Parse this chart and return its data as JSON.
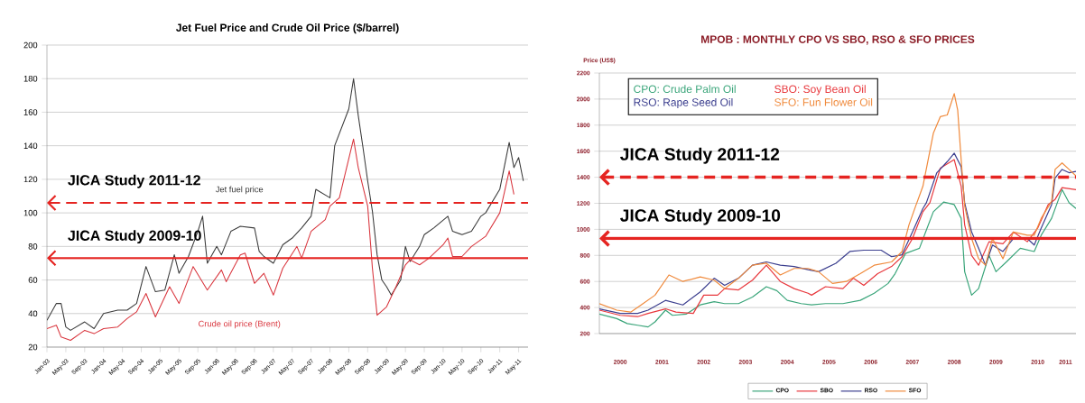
{
  "chart_data": [
    {
      "type": "line",
      "title": "Jet Fuel Price and Crude Oil Price ($/barrel)",
      "xlim": [
        "2003-01",
        "2011-07"
      ],
      "ylim": [
        20,
        200
      ],
      "yticks": [
        20,
        40,
        60,
        80,
        100,
        120,
        140,
        160,
        180,
        200
      ],
      "xticks": [
        {
          "value": "2003-01",
          "label": "Jan-03"
        },
        {
          "value": "2003-05",
          "label": "May-03"
        },
        {
          "value": "2003-09",
          "label": "Sep-03"
        },
        {
          "value": "2004-01",
          "label": "Jan-04"
        },
        {
          "value": "2004-05",
          "label": "May-04"
        },
        {
          "value": "2004-09",
          "label": "Sep-04"
        },
        {
          "value": "2005-01",
          "label": "Jan-05"
        },
        {
          "value": "2005-05",
          "label": "May-05"
        },
        {
          "value": "2005-09",
          "label": "Sep-05"
        },
        {
          "value": "2006-01",
          "label": "Jan-06"
        },
        {
          "value": "2006-05",
          "label": "May-06"
        },
        {
          "value": "2006-09",
          "label": "Sep-06"
        },
        {
          "value": "2007-01",
          "label": "Jan-07"
        },
        {
          "value": "2007-05",
          "label": "May-07"
        },
        {
          "value": "2007-09",
          "label": "Sep-07"
        },
        {
          "value": "2008-01",
          "label": "Jan-08"
        },
        {
          "value": "2008-05",
          "label": "May-08"
        },
        {
          "value": "2008-09",
          "label": "Sep-08"
        },
        {
          "value": "2009-01",
          "label": "Jan-09"
        },
        {
          "value": "2009-05",
          "label": "May-09"
        },
        {
          "value": "2009-09",
          "label": "Sep-09"
        },
        {
          "value": "2010-01",
          "label": "Jan-10"
        },
        {
          "value": "2010-05",
          "label": "May-10"
        },
        {
          "value": "2010-09",
          "label": "Sep-10"
        },
        {
          "value": "2011-01",
          "label": "Jan-11"
        },
        {
          "value": "2011-05",
          "label": "May-11"
        }
      ],
      "grid": "y",
      "series": [
        {
          "name": "Jet fuel price",
          "color": "#3a3a3a",
          "x": [
            "2003-01",
            "2003-03",
            "2003-04",
            "2003-05",
            "2003-06",
            "2003-09",
            "2003-11",
            "2004-01",
            "2004-04",
            "2004-06",
            "2004-08",
            "2004-10",
            "2004-12",
            "2005-02",
            "2005-04",
            "2005-05",
            "2005-07",
            "2005-09",
            "2005-10",
            "2005-11",
            "2006-01",
            "2006-02",
            "2006-04",
            "2006-06",
            "2006-09",
            "2006-10",
            "2006-11",
            "2007-01",
            "2007-03",
            "2007-05",
            "2007-07",
            "2007-09",
            "2007-10",
            "2008-01",
            "2008-02",
            "2008-05",
            "2008-06",
            "2008-07",
            "2008-08",
            "2008-09",
            "2008-10",
            "2008-11",
            "2008-12",
            "2009-01",
            "2009-02",
            "2009-04",
            "2009-05",
            "2009-06",
            "2009-08",
            "2009-09",
            "2009-11",
            "2010-02",
            "2010-03",
            "2010-05",
            "2010-07",
            "2010-09",
            "2010-10",
            "2011-01",
            "2011-03",
            "2011-04",
            "2011-05",
            "2011-06"
          ],
          "values": [
            36,
            46,
            46,
            32,
            30,
            35,
            31,
            40,
            42,
            42,
            46,
            68,
            53,
            54,
            75,
            64,
            74,
            89,
            98,
            70,
            80,
            75,
            89,
            92,
            91,
            77,
            74,
            70,
            81,
            85,
            91,
            98,
            114,
            109,
            140,
            162,
            180,
            158,
            139,
            119,
            101,
            75,
            60,
            56,
            51,
            60,
            80,
            71,
            80,
            87,
            91,
            98,
            89,
            87,
            89,
            98,
            100,
            114,
            142,
            127,
            133,
            119
          ]
        },
        {
          "name": "Crude oil price (Brent)",
          "color": "#d9363e",
          "x": [
            "2003-01",
            "2003-03",
            "2003-04",
            "2003-06",
            "2003-09",
            "2003-11",
            "2004-01",
            "2004-04",
            "2004-06",
            "2004-08",
            "2004-10",
            "2004-12",
            "2005-03",
            "2005-05",
            "2005-08",
            "2005-11",
            "2006-02",
            "2006-03",
            "2006-06",
            "2006-07",
            "2006-09",
            "2006-11",
            "2007-01",
            "2007-03",
            "2007-06",
            "2007-07",
            "2007-09",
            "2007-12",
            "2008-01",
            "2008-03",
            "2008-06",
            "2008-07",
            "2008-09",
            "2008-10",
            "2008-11",
            "2009-01",
            "2009-03",
            "2009-05",
            "2009-06",
            "2009-08",
            "2009-10",
            "2010-01",
            "2010-02",
            "2010-03",
            "2010-05",
            "2010-07",
            "2010-10",
            "2011-01",
            "2011-03",
            "2011-04"
          ],
          "values": [
            31,
            33,
            26,
            24,
            30,
            28,
            31,
            32,
            37,
            41,
            52,
            38,
            56,
            46,
            68,
            54,
            66,
            59,
            75,
            76,
            58,
            64,
            51,
            67,
            80,
            73,
            89,
            96,
            104,
            109,
            144,
            127,
            104,
            67,
            39,
            44,
            56,
            69,
            72,
            69,
            73,
            81,
            85,
            74,
            74,
            80,
            86,
            100,
            125,
            111
          ]
        }
      ],
      "ref_lines": [
        {
          "axis": "y",
          "value": 106,
          "label": "JICA Study 2011-12",
          "color": "#e52421",
          "line_style": "dashed"
        },
        {
          "axis": "y",
          "value": 73,
          "label": "JICA Study 2009-10",
          "color": "#e52421",
          "line_style": "solid"
        }
      ]
    },
    {
      "type": "line",
      "title": "MPOB : MONTHLY CPO VS SBO, RSO & SFO PRICES",
      "ylabel": "Price (US$)",
      "xlim": [
        "2000-01",
        "2011-06"
      ],
      "ylim": [
        200,
        2200
      ],
      "yticks": [
        200,
        400,
        600,
        800,
        1000,
        1200,
        1400,
        1600,
        1800,
        2000,
        2200
      ],
      "xticks": [
        {
          "value": "2000-07",
          "label": "2000"
        },
        {
          "value": "2001-07",
          "label": "2001"
        },
        {
          "value": "2002-07",
          "label": "2002"
        },
        {
          "value": "2003-07",
          "label": "2003"
        },
        {
          "value": "2004-07",
          "label": "2004"
        },
        {
          "value": "2005-07",
          "label": "2005"
        },
        {
          "value": "2006-07",
          "label": "2006"
        },
        {
          "value": "2007-07",
          "label": "2007"
        },
        {
          "value": "2008-07",
          "label": "2008"
        },
        {
          "value": "2009-07",
          "label": "2009"
        },
        {
          "value": "2010-07",
          "label": "2010"
        },
        {
          "value": "2011-03",
          "label": "2011"
        }
      ],
      "grid": "y",
      "legend": "bottom",
      "series": [
        {
          "name": "CPO",
          "color": "#3aa57a",
          "x": [
            "2000-01",
            "2000-06",
            "2000-09",
            "2000-12",
            "2001-03",
            "2001-05",
            "2001-08",
            "2001-10",
            "2002-02",
            "2002-06",
            "2002-10",
            "2003-01",
            "2003-05",
            "2003-09",
            "2004-01",
            "2004-04",
            "2004-07",
            "2004-11",
            "2005-02",
            "2005-06",
            "2005-11",
            "2006-04",
            "2006-08",
            "2006-12",
            "2007-02",
            "2007-05",
            "2007-09",
            "2008-01",
            "2008-04",
            "2008-07",
            "2008-09",
            "2008-10",
            "2008-12",
            "2009-02",
            "2009-05",
            "2009-07",
            "2009-10",
            "2010-02",
            "2010-06",
            "2010-08",
            "2010-11",
            "2011-02",
            "2011-04",
            "2011-06"
          ],
          "values": [
            350,
            315,
            277,
            264,
            251,
            290,
            380,
            340,
            350,
            420,
            445,
            430,
            430,
            480,
            560,
            530,
            455,
            430,
            420,
            430,
            430,
            455,
            510,
            585,
            660,
            815,
            855,
            1135,
            1210,
            1190,
            1085,
            675,
            495,
            545,
            800,
            675,
            750,
            855,
            830,
            955,
            1085,
            1305,
            1205,
            1160
          ]
        },
        {
          "name": "SBO",
          "color": "#e8383d",
          "x": [
            "2000-01",
            "2000-07",
            "2000-12",
            "2001-03",
            "2001-08",
            "2001-11",
            "2002-04",
            "2002-07",
            "2002-11",
            "2003-01",
            "2003-05",
            "2003-09",
            "2004-01",
            "2004-05",
            "2004-09",
            "2005-01",
            "2005-02",
            "2005-06",
            "2005-11",
            "2006-02",
            "2006-05",
            "2006-09",
            "2007-01",
            "2007-04",
            "2007-07",
            "2007-10",
            "2007-12",
            "2008-03",
            "2008-07",
            "2008-09",
            "2008-10",
            "2008-12",
            "2009-02",
            "2009-05",
            "2009-09",
            "2009-12",
            "2010-04",
            "2010-07",
            "2010-10",
            "2010-12",
            "2011-02",
            "2011-06"
          ],
          "values": [
            380,
            340,
            330,
            355,
            390,
            365,
            355,
            495,
            495,
            545,
            535,
            610,
            725,
            600,
            545,
            510,
            495,
            560,
            545,
            625,
            570,
            660,
            715,
            790,
            930,
            1135,
            1204,
            1470,
            1535,
            1330,
            1035,
            800,
            725,
            905,
            890,
            980,
            905,
            1010,
            1190,
            1230,
            1320,
            1305
          ]
        },
        {
          "name": "RSO",
          "color": "#3c3f8f",
          "x": [
            "2000-01",
            "2000-07",
            "2000-12",
            "2001-03",
            "2001-08",
            "2002-01",
            "2002-06",
            "2002-10",
            "2003-01",
            "2003-05",
            "2003-09",
            "2004-01",
            "2004-05",
            "2004-09",
            "2005-01",
            "2005-04",
            "2005-09",
            "2006-01",
            "2006-05",
            "2006-10",
            "2007-01",
            "2007-04",
            "2007-07",
            "2007-10",
            "2007-11",
            "2008-02",
            "2008-05",
            "2008-07",
            "2008-09",
            "2008-10",
            "2008-12",
            "2009-02",
            "2009-04",
            "2009-06",
            "2009-09",
            "2009-12",
            "2010-04",
            "2010-06",
            "2010-08",
            "2010-11",
            "2010-12",
            "2011-02",
            "2011-04",
            "2011-06"
          ],
          "values": [
            390,
            355,
            355,
            380,
            455,
            420,
            520,
            625,
            570,
            625,
            725,
            750,
            725,
            715,
            690,
            675,
            740,
            830,
            840,
            840,
            790,
            805,
            980,
            1160,
            1204,
            1435,
            1520,
            1585,
            1480,
            1204,
            980,
            855,
            725,
            880,
            830,
            930,
            930,
            880,
            1010,
            1190,
            1395,
            1460,
            1435,
            1445
          ]
        },
        {
          "name": "SFO",
          "color": "#f08a3c",
          "x": [
            "2000-01",
            "2000-06",
            "2000-10",
            "2001-01",
            "2001-05",
            "2001-09",
            "2002-01",
            "2002-06",
            "2002-10",
            "2003-01",
            "2003-05",
            "2003-09",
            "2004-01",
            "2004-05",
            "2004-09",
            "2005-01",
            "2005-04",
            "2005-08",
            "2005-12",
            "2006-04",
            "2006-08",
            "2007-01",
            "2007-04",
            "2007-06",
            "2007-08",
            "2007-10",
            "2008-01",
            "2008-03",
            "2008-05",
            "2008-07",
            "2008-08",
            "2008-09",
            "2008-10",
            "2008-12",
            "2009-02",
            "2009-04",
            "2009-06",
            "2009-09",
            "2009-12",
            "2010-04",
            "2010-06",
            "2010-08",
            "2010-11",
            "2010-12",
            "2011-02",
            "2011-04",
            "2011-06"
          ],
          "values": [
            430,
            380,
            365,
            420,
            495,
            650,
            600,
            635,
            610,
            545,
            625,
            725,
            740,
            650,
            700,
            700,
            675,
            585,
            600,
            660,
            725,
            750,
            830,
            1035,
            1185,
            1331,
            1738,
            1865,
            1878,
            2042,
            1915,
            1535,
            1180,
            930,
            775,
            725,
            930,
            775,
            980,
            955,
            955,
            1085,
            1215,
            1460,
            1510,
            1460,
            1410
          ]
        }
      ],
      "ref_lines": [
        {
          "axis": "y",
          "value": 1400,
          "label": "JICA Study 2011-12",
          "color": "#e52421",
          "line_style": "dashed"
        },
        {
          "axis": "y",
          "value": 930,
          "label": "JICA Study 2009-10",
          "color": "#e52421",
          "line_style": "solid"
        }
      ],
      "annotations": [
        "CPO: Crude Palm Oil",
        "SBO: Soy Bean Oil",
        "RSO: Rape Seed Oil",
        "SFO: Fun Flower Oil"
      ]
    }
  ]
}
